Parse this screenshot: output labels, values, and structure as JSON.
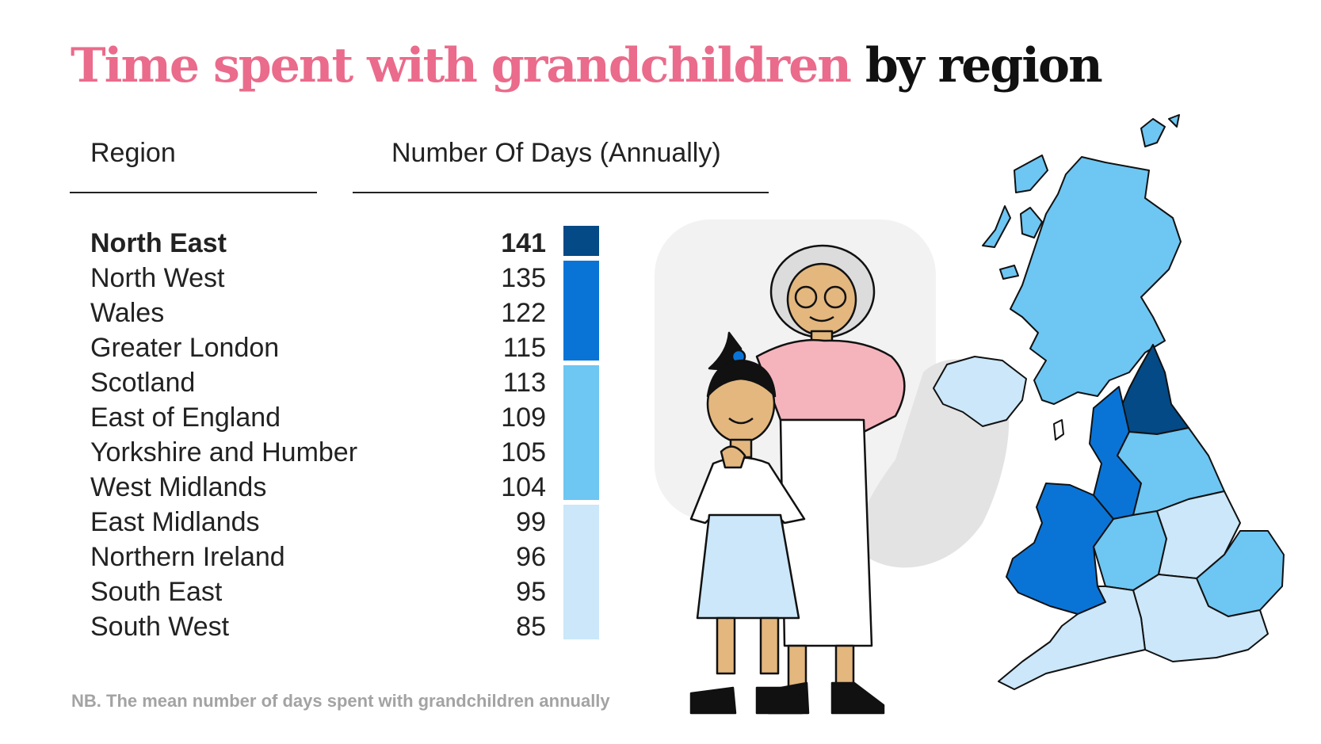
{
  "title": {
    "highlight": "Time spent with grandchildren",
    "rest": "by region"
  },
  "columns": {
    "region": "Region",
    "days": "Number Of Days (Annually)"
  },
  "footnote": "NB. The mean number of days spent with grandchildren annually",
  "colors": {
    "title_pink": "#ea6b8b",
    "tier_1": "#034a86",
    "tier_2": "#0a74d6",
    "tier_3": "#6ec6f2",
    "tier_4": "#cbe7f9"
  },
  "chart_data": {
    "type": "table",
    "title": "Time spent with grandchildren by region",
    "xlabel": "Region",
    "ylabel": "Number Of Days (Annually)",
    "categories": [
      "North East",
      "North West",
      "Wales",
      "Greater London",
      "Scotland",
      "East of England",
      "Yorkshire and Humber",
      "West Midlands",
      "East Midlands",
      "Northern Ireland",
      "South East",
      "South West"
    ],
    "values": [
      141,
      135,
      122,
      115,
      113,
      109,
      105,
      104,
      99,
      96,
      95,
      85
    ],
    "tiers": [
      1,
      2,
      2,
      2,
      3,
      3,
      3,
      3,
      4,
      4,
      4,
      4
    ]
  }
}
